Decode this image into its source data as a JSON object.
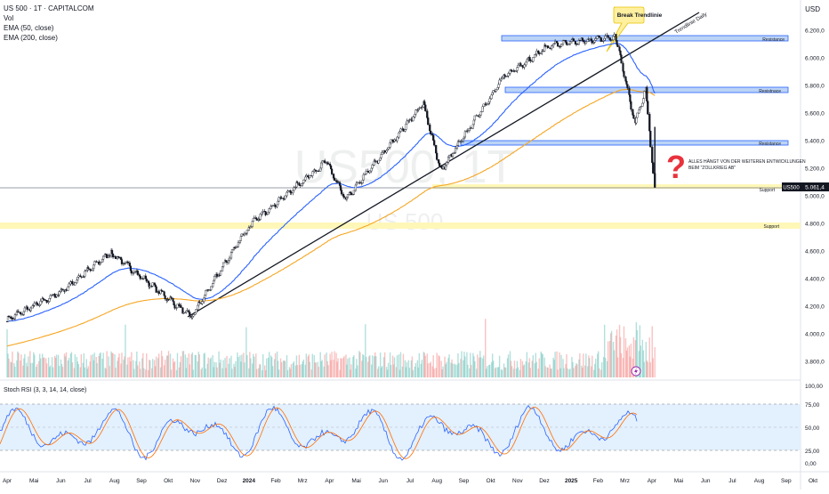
{
  "legend": {
    "symbol_line": "US 500 · 1T · CAPITALCOM",
    "vol": "Vol",
    "ema50": "EMA (50, close)",
    "ema200": "EMA (200, close)"
  },
  "currency": "USD",
  "watermark": {
    "symbol": "US500, 1T",
    "name": "US 500"
  },
  "price_axis": {
    "ticks": [
      "6.200,0",
      "6.000,0",
      "5.800,0",
      "5.600,0",
      "5.400,0",
      "5.200,0",
      "5.000,0",
      "4.800,0",
      "4.600,0",
      "4.400,0",
      "4.200,0",
      "4.000,0",
      "3.800,0"
    ]
  },
  "price_badge": {
    "symbol": "US500",
    "value": "5.061,4"
  },
  "annotations": {
    "callout": "Break Trendlinie",
    "trendline_label": "Trendlinie Daily",
    "resistance_1": "Resistance",
    "resistance_2": "Resistnace",
    "resistance_3": "Resistance",
    "support_1": "Support",
    "support_2": "Support",
    "question_mark": "?",
    "note_line1": "ALLES HÄNGT VON DER WEITEREN ENTWICKLUNGEN",
    "note_line2": "BEIM \"ZOLLKRIEG AB\""
  },
  "stoch": {
    "title": "Stoch RSI (3, 3, 14, 14, close)",
    "ticks": [
      "100,00",
      "75,00",
      "50,00",
      "25,00",
      "0,00"
    ]
  },
  "time_axis": [
    "Apr",
    "Mai",
    "Jun",
    "Jul",
    "Aug",
    "Sep",
    "Okt",
    "Nov",
    "Dez",
    "2024",
    "Feb",
    "Mrz",
    "Apr",
    "Mai",
    "Jun",
    "Jul",
    "Aug",
    "Sep",
    "Okt",
    "Nov",
    "Dez",
    "2025",
    "Feb",
    "Mrz",
    "Apr",
    "Mai",
    "Jun",
    "Jul",
    "Aug",
    "Sep",
    "Okt"
  ],
  "colors": {
    "up": "#26a69a",
    "down": "#ef5350",
    "candle": "#131722",
    "ema50": "#2962ff",
    "ema200": "#f5a623",
    "resistance_fill": "#bbd3f5",
    "resistance_line": "#2962ff",
    "support_fill": "#fff7b8",
    "stoch_k": "#2962ff",
    "stoch_d": "#ff6d00",
    "stoch_band": "#e3f0fd"
  },
  "chart_data": {
    "type": "candlestick",
    "price_range": [
      3700,
      6300
    ],
    "timeline": "2023-04 to 2025-10 daily",
    "close_path": [
      {
        "date": "2023-04-01",
        "close": 4100
      },
      {
        "date": "2023-06-01",
        "close": 4300
      },
      {
        "date": "2023-07-28",
        "close": 4590
      },
      {
        "date": "2023-10-27",
        "close": 4120
      },
      {
        "date": "2023-12-31",
        "close": 4780
      },
      {
        "date": "2024-03-28",
        "close": 5250
      },
      {
        "date": "2024-04-19",
        "close": 4970
      },
      {
        "date": "2024-07-16",
        "close": 5670
      },
      {
        "date": "2024-08-05",
        "close": 5180
      },
      {
        "date": "2024-10-15",
        "close": 5860
      },
      {
        "date": "2024-12-06",
        "close": 6090
      },
      {
        "date": "2025-02-19",
        "close": 6150
      },
      {
        "date": "2025-03-13",
        "close": 5530
      },
      {
        "date": "2025-03-25",
        "close": 5780
      },
      {
        "date": "2025-04-04",
        "close": 5061.4
      }
    ],
    "levels": {
      "resistance": [
        6150,
        5770,
        5380
      ],
      "support": [
        5060,
        4800
      ]
    },
    "stoch_rsi_levels": [
      80,
      50,
      20
    ]
  }
}
